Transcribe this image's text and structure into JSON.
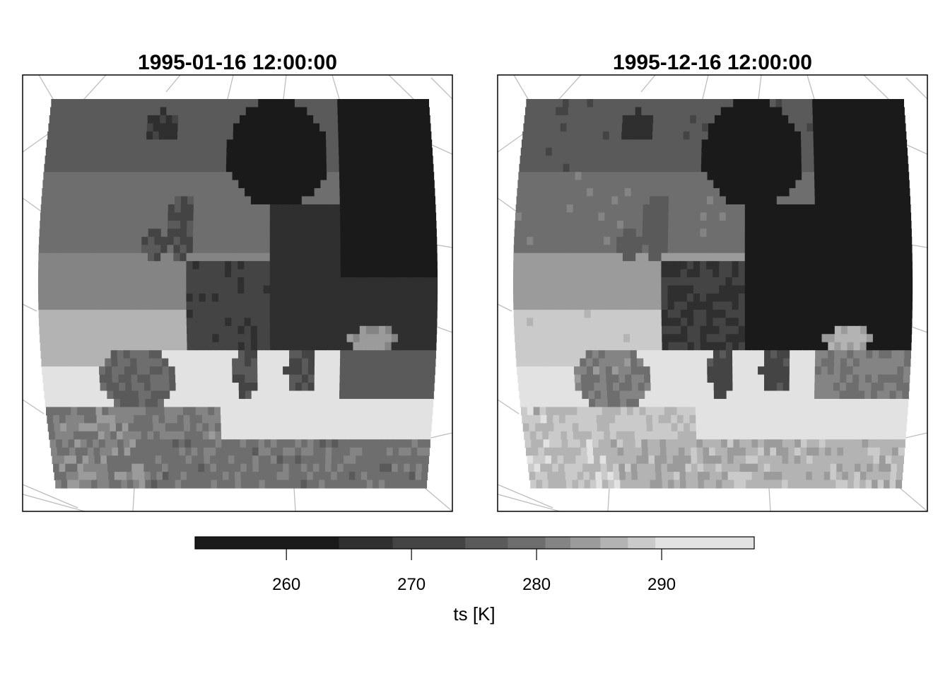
{
  "chart_data": {
    "type": "heatmap",
    "variable": "ts [K]",
    "colorbar": {
      "label": "ts [K]",
      "ticks": [
        260,
        270,
        280,
        290
      ],
      "range": [
        252.7,
        297.4
      ],
      "breaks": [
        252.7,
        264.2,
        268.5,
        274.3,
        277.7,
        280.7,
        282.7,
        285.1,
        287.3,
        289.5,
        297.4
      ],
      "colors": [
        "#1a1a1a",
        "#2f2f2f",
        "#444444",
        "#5a5a5a",
        "#6e6e6e",
        "#848484",
        "#9b9b9b",
        "#b3b3b3",
        "#cacaca",
        "#e2e2e2"
      ],
      "position": "bottom"
    },
    "panels": [
      {
        "title": "1995-01-16 12:00:00",
        "regions": {
          "north_atlantic_far": 275.5,
          "north_atlantic_mid": 279.0,
          "atlantic_central": 281.5,
          "atlantic_south": 286.0,
          "atlantic_subtropical": 292.0,
          "iceland": 268.0,
          "british_isles": 274.0,
          "scandinavia": 262.0,
          "northeast_russia": 259.0,
          "eastern_europe": 266.0,
          "central_europe": 270.0,
          "iberia": 278.0,
          "mediterranean_sea": 291.5,
          "north_africa": 281.0,
          "sahara_north": 279.5,
          "turkey": 276.0,
          "black_sea": 283.0,
          "caspian": 277.5
        }
      },
      {
        "title": "1995-12-16 12:00:00",
        "regions": {
          "north_atlantic_far": 275.0,
          "north_atlantic_mid": 280.0,
          "atlantic_central": 283.5,
          "atlantic_south": 288.0,
          "atlantic_subtropical": 293.0,
          "iceland": 267.0,
          "british_isles": 276.0,
          "scandinavia": 258.0,
          "northeast_russia": 256.0,
          "eastern_europe": 262.0,
          "central_europe": 268.5,
          "iberia": 281.0,
          "mediterranean_sea": 292.5,
          "north_africa": 287.5,
          "sahara_north": 286.0,
          "turkey": 281.0,
          "black_sea": 285.0,
          "caspian": 282.0
        }
      }
    ]
  }
}
